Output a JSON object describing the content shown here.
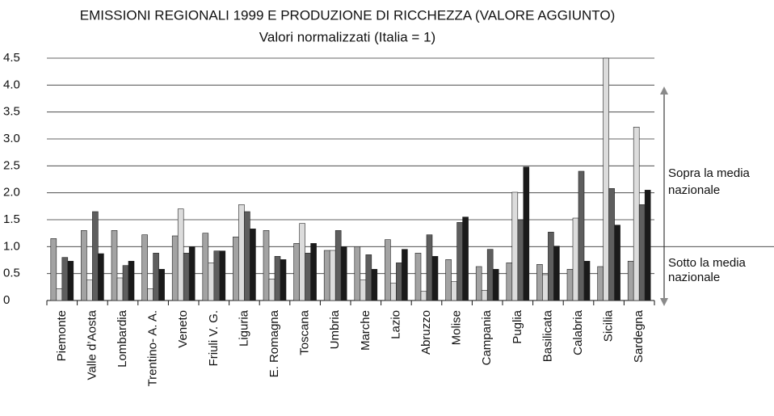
{
  "chart_data": {
    "type": "bar",
    "title": "EMISSIONI REGIONALI 1999 E PRODUZIONE DI RICCHEZZA (VALORE AGGIUNTO)",
    "subtitle": "Valori normalizzati (Italia = 1)",
    "categories": [
      "Piemonte",
      "Valle d’Aosta",
      "Lombardia",
      "Trentino- A. A.",
      "Veneto",
      "Friuli V. G.",
      "Liguria",
      "E. Romagna",
      "Toscana",
      "Umbria",
      "Marche",
      "Lazio",
      "Abruzzo",
      "Molise",
      "Campania",
      "Puglia",
      "Basilicata",
      "Calabria",
      "Sicilia",
      "Sardegna"
    ],
    "series": [
      {
        "color": "#a3a3a3",
        "values": [
          1.15,
          1.3,
          1.3,
          1.22,
          1.2,
          1.25,
          1.18,
          1.3,
          1.06,
          0.93,
          1.0,
          1.13,
          0.88,
          0.76,
          0.63,
          0.7,
          0.67,
          0.58,
          0.63,
          0.73
        ]
      },
      {
        "color": "#dcdcdc",
        "values": [
          0.22,
          0.38,
          0.42,
          0.22,
          1.7,
          0.7,
          1.78,
          0.4,
          1.43,
          0.93,
          0.38,
          0.32,
          0.17,
          0.35,
          0.19,
          2.01,
          0.48,
          1.53,
          4.5,
          3.22
        ]
      },
      {
        "color": "#5e5e5e",
        "values": [
          0.8,
          1.65,
          0.65,
          0.88,
          0.88,
          0.92,
          1.65,
          0.82,
          0.88,
          1.3,
          0.85,
          0.7,
          1.22,
          1.45,
          0.95,
          1.5,
          1.27,
          2.4,
          2.08,
          1.78
        ]
      },
      {
        "color": "#1a1a1a",
        "values": [
          0.73,
          0.87,
          0.73,
          0.58,
          1.0,
          0.92,
          1.33,
          0.76,
          1.06,
          1.0,
          0.58,
          0.95,
          0.82,
          1.55,
          0.58,
          2.48,
          1.01,
          0.73,
          1.4,
          2.05
        ]
      }
    ],
    "ylim": [
      0,
      4.5
    ],
    "yticks": [
      0,
      0.5,
      {
        "value": 1,
        "label": "1.0"
      },
      1.5,
      {
        "value": 2,
        "label": "2.0"
      },
      2.5,
      {
        "value": 3,
        "label": "3.0"
      },
      3.5,
      {
        "value": 4,
        "label": "4.0"
      },
      4.5
    ],
    "grid": true,
    "reference_line": 1,
    "annotations": [
      {
        "lines": [
          "Sopra la media",
          "nazionale"
        ]
      },
      {
        "lines": [
          "Sotto la media",
          "nazionale"
        ]
      }
    ]
  }
}
